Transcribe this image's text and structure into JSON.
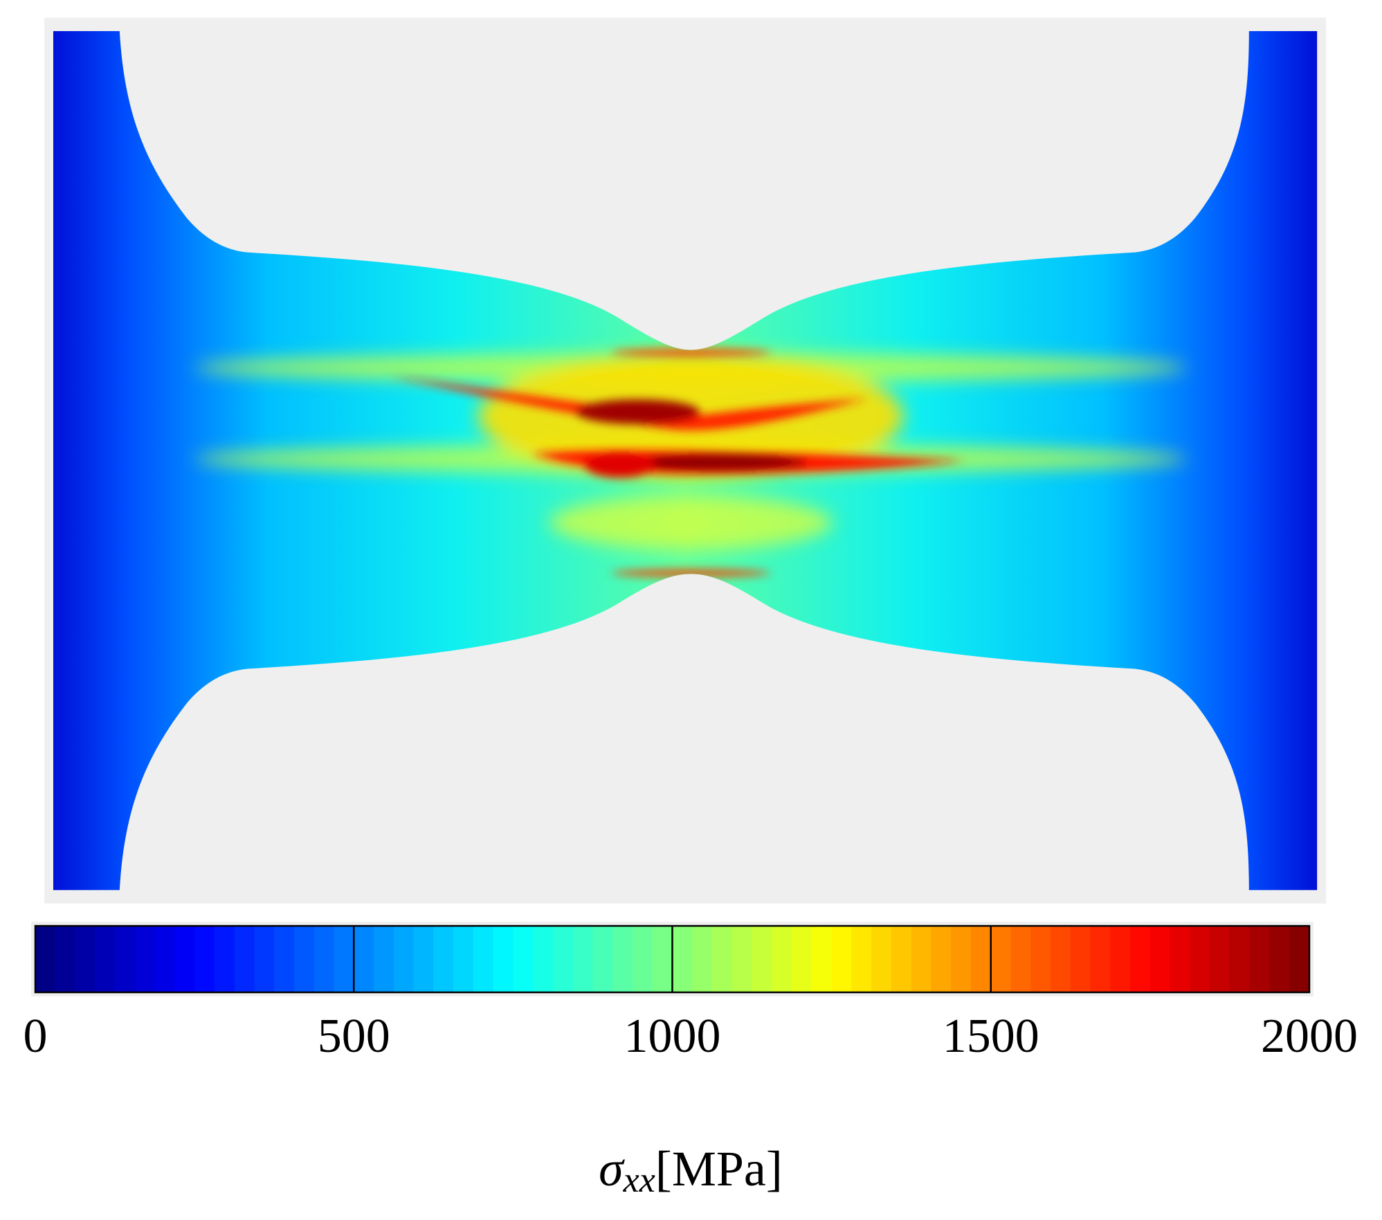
{
  "chart_data": {
    "type": "contour",
    "colormap": "jet",
    "colorbar_symbol": "σ",
    "colorbar_subscript": "xx",
    "colorbar_unit": "[MPa]",
    "xlim": [
      0,
      2000
    ],
    "xticks": [
      0,
      500,
      1000,
      1500,
      2000
    ]
  }
}
